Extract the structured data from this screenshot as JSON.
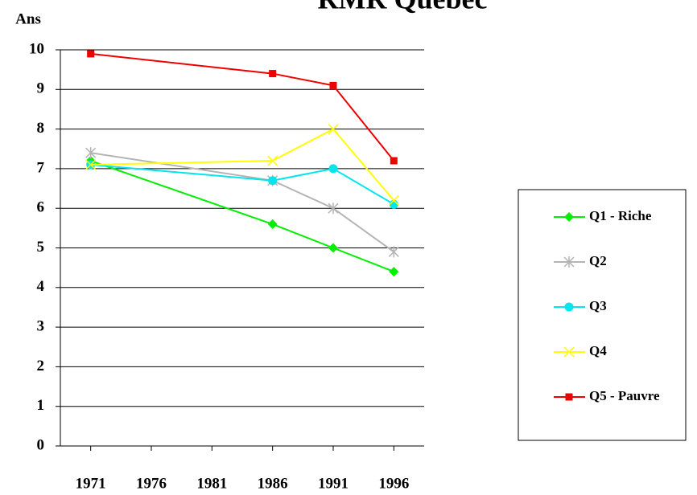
{
  "chart_data": {
    "type": "line",
    "title": "RMR Québec",
    "y_label": "Ans",
    "x": [
      1971,
      1986,
      1991,
      1996
    ],
    "xlim": [
      1968.5,
      1998.5
    ],
    "xticks": [
      1971,
      1976,
      1981,
      1986,
      1991,
      1996
    ],
    "ylim": [
      0,
      10
    ],
    "yticks": [
      0,
      1,
      2,
      3,
      4,
      5,
      6,
      7,
      8,
      9,
      10
    ],
    "grid": true,
    "legend": "right",
    "series": [
      {
        "name": "Q1 - Riche",
        "color": "#00ee00",
        "marker": "diamond",
        "values": [
          7.2,
          5.6,
          5.0,
          4.4
        ]
      },
      {
        "name": "Q2",
        "color": "#b4b4b4",
        "marker": "asterisk",
        "values": [
          7.4,
          6.7,
          6.0,
          4.9
        ]
      },
      {
        "name": "Q3",
        "color": "#00e5ee",
        "marker": "circle",
        "values": [
          7.1,
          6.7,
          7.0,
          6.1
        ]
      },
      {
        "name": "Q4",
        "color": "#ffff00",
        "marker": "x",
        "values": [
          7.1,
          7.2,
          8.0,
          6.2
        ]
      },
      {
        "name": "Q5 - Pauvre",
        "color": "#ee0000",
        "marker": "square",
        "values": [
          9.9,
          9.4,
          9.1,
          7.2
        ]
      }
    ]
  }
}
